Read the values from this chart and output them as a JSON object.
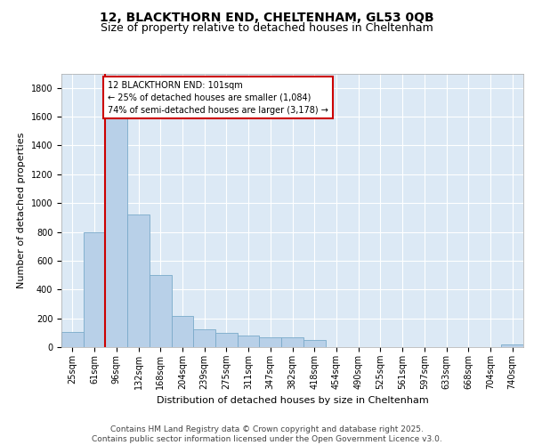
{
  "title_line1": "12, BLACKTHORN END, CHELTENHAM, GL53 0QB",
  "title_line2": "Size of property relative to detached houses in Cheltenham",
  "xlabel": "Distribution of detached houses by size in Cheltenham",
  "ylabel": "Number of detached properties",
  "categories": [
    "25sqm",
    "61sqm",
    "96sqm",
    "132sqm",
    "168sqm",
    "204sqm",
    "239sqm",
    "275sqm",
    "311sqm",
    "347sqm",
    "382sqm",
    "418sqm",
    "454sqm",
    "490sqm",
    "525sqm",
    "561sqm",
    "597sqm",
    "633sqm",
    "668sqm",
    "704sqm",
    "740sqm"
  ],
  "bar_heights": [
    105,
    800,
    1680,
    920,
    500,
    215,
    125,
    100,
    80,
    70,
    65,
    50,
    0,
    0,
    0,
    0,
    0,
    0,
    0,
    0,
    20
  ],
  "bar_color": "#b8d0e8",
  "bar_edgecolor": "#7aaaca",
  "vline_color": "#cc0000",
  "vline_x_index": 1.5,
  "annotation_text": "12 BLACKTHORN END: 101sqm\n← 25% of detached houses are smaller (1,084)\n74% of semi-detached houses are larger (3,178) →",
  "annotation_box_facecolor": "#ffffff",
  "annotation_box_edgecolor": "#cc0000",
  "ylim": [
    0,
    1900
  ],
  "yticks": [
    0,
    200,
    400,
    600,
    800,
    1000,
    1200,
    1400,
    1600,
    1800
  ],
  "footnote": "Contains HM Land Registry data © Crown copyright and database right 2025.\nContains public sector information licensed under the Open Government Licence v3.0.",
  "fig_facecolor": "#ffffff",
  "plot_facecolor": "#dce9f5",
  "title_fontsize": 10,
  "subtitle_fontsize": 9,
  "axis_label_fontsize": 8,
  "tick_fontsize": 7,
  "annotation_fontsize": 7,
  "footnote_fontsize": 6.5
}
